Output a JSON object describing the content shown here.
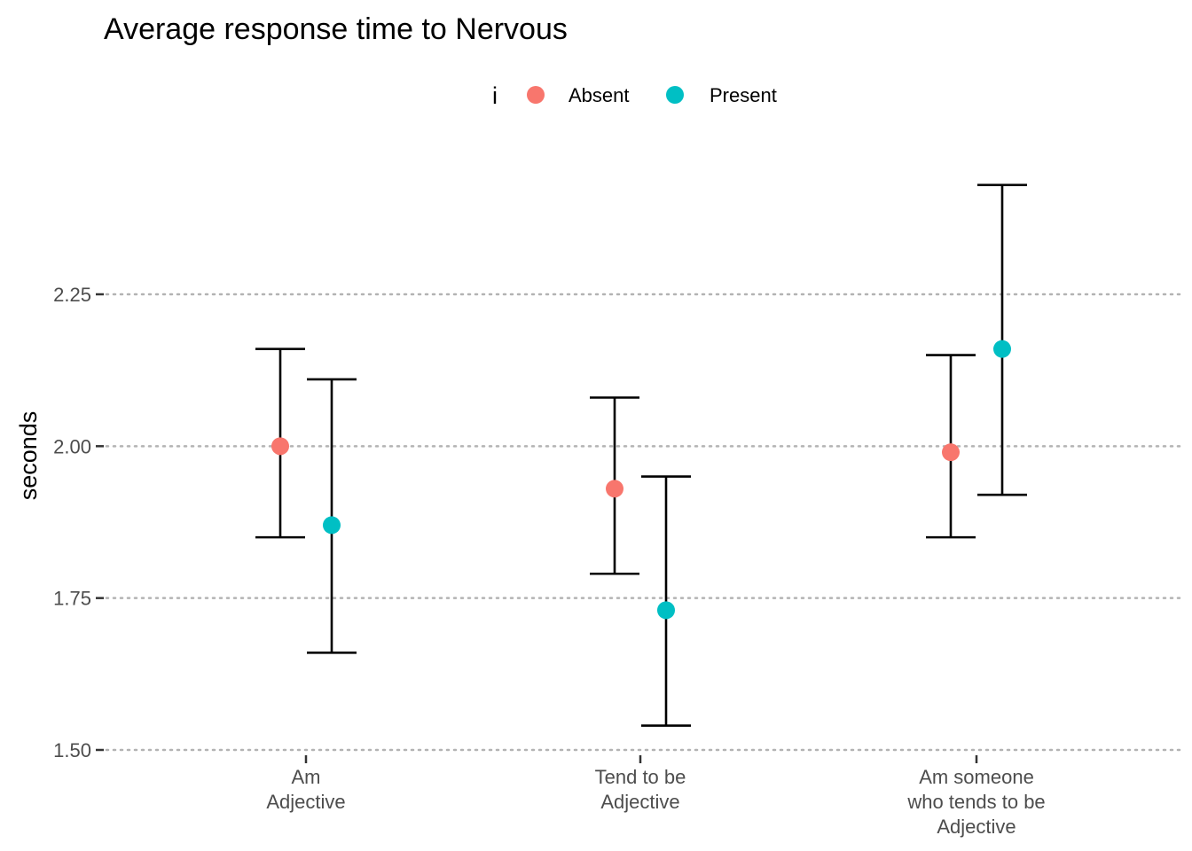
{
  "chart_data": {
    "type": "scatter",
    "title": "Average response time to Nervous",
    "xlabel": "",
    "ylabel": "seconds",
    "ylim": [
      1.5,
      2.43
    ],
    "yticks": [
      1.5,
      1.75,
      2.0,
      2.25
    ],
    "ytick_labels": [
      "1.50",
      "1.75",
      "2.00",
      "2.25"
    ],
    "grid": "horizontal dotted",
    "categories": [
      [
        "Am",
        "Adjective"
      ],
      [
        "Tend to be",
        "Adjective"
      ],
      [
        "Am someone",
        "who tends to be",
        "Adjective"
      ]
    ],
    "legend": {
      "title": "i",
      "placement": "top"
    },
    "series": [
      {
        "name": "Absent",
        "color": "#F8766D",
        "values": [
          2.0,
          1.93,
          1.99
        ],
        "lower": [
          1.85,
          1.79,
          1.85
        ],
        "upper": [
          2.16,
          2.08,
          2.15
        ]
      },
      {
        "name": "Present",
        "color": "#00BFC4",
        "values": [
          1.87,
          1.73,
          2.16
        ],
        "lower": [
          1.66,
          1.54,
          1.92
        ],
        "upper": [
          2.11,
          1.95,
          2.43
        ]
      }
    ]
  }
}
